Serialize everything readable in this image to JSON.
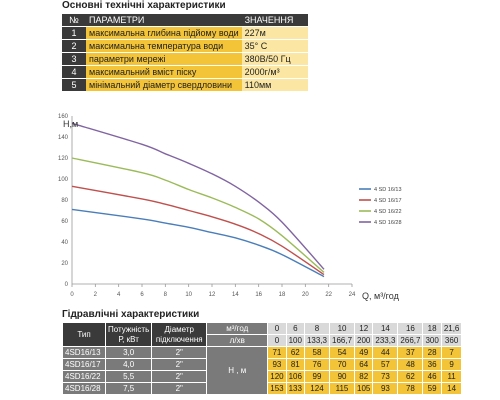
{
  "specs_title": "Основні технічні характеристики",
  "specs_header": {
    "num": "№",
    "param": "ПАРАМЕТРИ",
    "value": "ЗНАЧЕННЯ"
  },
  "specs": [
    {
      "n": "1",
      "label": "максимальна глибина підйому води",
      "value": "227м"
    },
    {
      "n": "2",
      "label": "максимальна температура води",
      "value": "35° С"
    },
    {
      "n": "3",
      "label": "параметри мережі",
      "value": "380В/50 Гц"
    },
    {
      "n": "4",
      "label": "максимальний вміст піску",
      "value": "2000г/м³"
    },
    {
      "n": "5",
      "label": "мінімальний діаметр свердловини",
      "value": "110мм"
    }
  ],
  "chart_data": {
    "type": "line",
    "ylabel": "H,м",
    "xlabel": "Q, м³/год",
    "xlim": [
      0,
      24
    ],
    "ylim": [
      0,
      160
    ],
    "xticks": [
      "0",
      "2",
      "4",
      "6",
      "8",
      "10",
      "12",
      "14",
      "16",
      "18",
      "20",
      "22",
      "24"
    ],
    "yticks": [
      "0",
      "20",
      "40",
      "60",
      "80",
      "100",
      "120",
      "140",
      "160"
    ],
    "grid": false,
    "legend_position": "right",
    "x": [
      0,
      6,
      8,
      10,
      12,
      14,
      16,
      18,
      21.6
    ],
    "series": [
      {
        "name": "4 SD 16/13",
        "color": "#4a7ebb",
        "values": [
          71,
          62,
          58,
          54,
          49,
          44,
          37,
          28,
          7
        ]
      },
      {
        "name": "4 SD 16/17",
        "color": "#c0504d",
        "values": [
          93,
          81,
          76,
          70,
          64,
          57,
          48,
          36,
          9
        ]
      },
      {
        "name": "4 SD 16/22",
        "color": "#9bbb59",
        "values": [
          120,
          106,
          99,
          90,
          82,
          73,
          62,
          46,
          11
        ]
      },
      {
        "name": "4 SD 16/28",
        "color": "#8064a2",
        "values": [
          153,
          133,
          124,
          115,
          105,
          93,
          78,
          59,
          14
        ]
      }
    ]
  },
  "hydraulic": {
    "title": "Гідравлічні характеристики",
    "col_type": "Тип",
    "col_power": "Потужність Р, кВт",
    "col_power_l1": "Потужність",
    "col_power_l2": "Р, кВт",
    "col_diam_l1": "Діаметр",
    "col_diam_l2": "підключення",
    "flow_m3h_label": "м³/год",
    "flow_lmin_label": "л/хв",
    "head_label": "Н , м",
    "flow_m3h": [
      "0",
      "6",
      "8",
      "10",
      "12",
      "14",
      "16",
      "18",
      "21,6"
    ],
    "flow_lmin": [
      "0",
      "100",
      "133,3",
      "166,7",
      "200",
      "233,3",
      "266,7",
      "300",
      "360"
    ],
    "rows": [
      {
        "model": "4SD16/13",
        "power": "3,0",
        "diam": "2\"",
        "head": [
          "71",
          "62",
          "58",
          "54",
          "49",
          "44",
          "37",
          "28",
          "7"
        ]
      },
      {
        "model": "4SD16/17",
        "power": "4,0",
        "diam": "2\"",
        "head": [
          "93",
          "81",
          "76",
          "70",
          "64",
          "57",
          "48",
          "36",
          "9"
        ]
      },
      {
        "model": "4SD16/22",
        "power": "5,5",
        "diam": "2\"",
        "head": [
          "120",
          "106",
          "99",
          "90",
          "82",
          "73",
          "62",
          "46",
          "11"
        ]
      },
      {
        "model": "4SD16/28",
        "power": "7,5",
        "diam": "2\"",
        "head": [
          "153",
          "133",
          "124",
          "115",
          "105",
          "93",
          "78",
          "59",
          "14"
        ]
      }
    ]
  }
}
